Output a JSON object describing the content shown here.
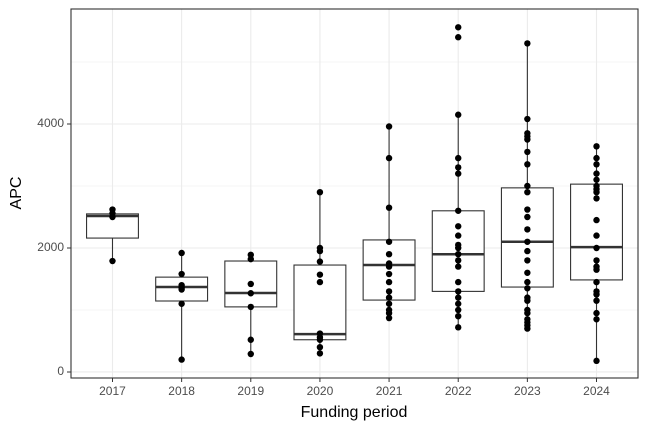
{
  "chart_data": {
    "type": "boxplot",
    "x_label": "Funding period",
    "y_label": "APC",
    "categories": [
      "2017",
      "2018",
      "2019",
      "2020",
      "2021",
      "2022",
      "2023",
      "2024"
    ],
    "boxes": [
      {
        "whislo": 1790,
        "q1": 2160,
        "median": 2516,
        "q3": 2550,
        "whishi": 2620
      },
      {
        "whislo": 200,
        "q1": 1145,
        "median": 1370,
        "q3": 1530,
        "whishi": 1920
      },
      {
        "whislo": 290,
        "q1": 1050,
        "median": 1275,
        "q3": 1790,
        "whishi": 1890
      },
      {
        "whislo": 300,
        "q1": 520,
        "median": 610,
        "q3": 1725,
        "whishi": 2900
      },
      {
        "whislo": 870,
        "q1": 1160,
        "median": 1725,
        "q3": 2130,
        "whishi": 3960
      },
      {
        "whislo": 720,
        "q1": 1300,
        "median": 1900,
        "q3": 2600,
        "whishi": 4150
      },
      {
        "whislo": 700,
        "q1": 1370,
        "median": 2100,
        "q3": 2970,
        "whishi": 5300
      },
      {
        "whislo": 180,
        "q1": 1485,
        "median": 2015,
        "q3": 3030,
        "whishi": 3640
      }
    ],
    "points": [
      [
        2620,
        2560,
        2500,
        1790
      ],
      [
        1920,
        1580,
        1400,
        1360,
        1330,
        1100,
        200
      ],
      [
        1890,
        1820,
        1420,
        1270,
        1050,
        520,
        290
      ],
      [
        2900,
        2000,
        1950,
        1780,
        1570,
        1450,
        620,
        560,
        520,
        400,
        300
      ],
      [
        3960,
        3450,
        2650,
        2100,
        1900,
        1750,
        1700,
        1580,
        1450,
        1300,
        1200,
        1100,
        1000,
        950,
        870
      ],
      [
        5560,
        5400,
        4150,
        3450,
        3300,
        3200,
        2600,
        2350,
        2200,
        2050,
        2000,
        1900,
        1800,
        1700,
        1450,
        1300,
        1200,
        1100,
        1000,
        900,
        720
      ],
      [
        5300,
        4080,
        3850,
        3800,
        3750,
        3550,
        3350,
        3000,
        2900,
        2620,
        2500,
        2300,
        2100,
        1950,
        1800,
        1600,
        1450,
        1350,
        1200,
        1150,
        1000,
        950,
        850,
        800,
        750,
        700
      ],
      [
        3640,
        3450,
        3350,
        3200,
        3100,
        3000,
        2950,
        2900,
        2800,
        2450,
        2200,
        2000,
        1800,
        1700,
        1650,
        1450,
        1300,
        1250,
        1150,
        950,
        850,
        180
      ]
    ],
    "point_color": "#000000",
    "ylim": [
      -97,
      5855
    ],
    "yticks": [
      0,
      2000,
      4000
    ],
    "grid": true
  }
}
